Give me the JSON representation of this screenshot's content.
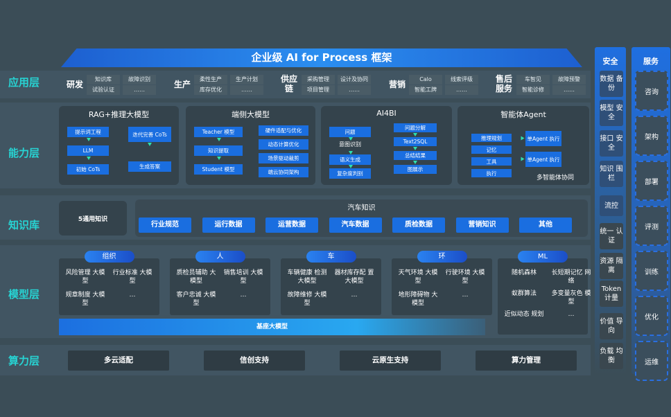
{
  "title": "企业级 AI for Process 框架",
  "layers": {
    "app": "应用层",
    "capability": "能力层",
    "knowledge": "知识库",
    "model": "模型层",
    "compute": "算力层"
  },
  "app_groups": [
    {
      "label": "研发",
      "items": [
        "知识库",
        "故障识别",
        "试验认证",
        "……"
      ]
    },
    {
      "label": "生产",
      "items": [
        "柔性生产",
        "生产计划",
        "库存优化",
        "……"
      ]
    },
    {
      "label": "供应链",
      "items": [
        "采购管理",
        "设计及协同",
        "项目管理",
        "……"
      ]
    },
    {
      "label": "营销",
      "items": [
        "Calo",
        "线索评级",
        "智能工牌",
        "……"
      ]
    },
    {
      "label": "售后服务",
      "items": [
        "车智见",
        "故障预警",
        "智能诊修",
        "……"
      ]
    }
  ],
  "capability": {
    "rag": {
      "title": "RAG+推理大模型",
      "left": [
        "提示词工程",
        "LLM",
        "初始 CoTs"
      ],
      "right": [
        "迭代完善 CoTs",
        "生成答案"
      ]
    },
    "edge": {
      "title": "端侧大模型",
      "left": [
        "Teacher 模型",
        "知识提取",
        "Student 模型"
      ],
      "right": [
        "硬件适配与优化",
        "动态计算优化",
        "场景驱动裁剪",
        "端云协同架构"
      ]
    },
    "ai4bi": {
      "title": "AI4BI",
      "left": [
        "问题",
        "意图识别",
        "语义生成",
        "复杂度判别"
      ],
      "right": [
        "问题分解",
        "Text2SQL",
        "总结结果",
        "图展示"
      ]
    },
    "agent": {
      "title": "智能体Agent",
      "left": [
        "推理规划",
        "记忆",
        "工具",
        "执行"
      ],
      "right": [
        "单Agent 执行",
        "单Agent 执行"
      ],
      "footer": "多智能体协同"
    }
  },
  "knowledge": {
    "general": "5通用知识",
    "auto_title": "汽车知识",
    "items": [
      "行业规范",
      "运行数据",
      "运营数据",
      "汽车数据",
      "质检数据",
      "营销知识",
      "其他"
    ]
  },
  "models": [
    {
      "pill": "组织",
      "items": [
        "风险管理 大模型",
        "行业标准 大模型",
        "规章制度 大模型",
        "…"
      ]
    },
    {
      "pill": "人",
      "items": [
        "质检员辅助 大模型",
        "销售培训 大模型",
        "客户忠诚 大模型",
        "…"
      ]
    },
    {
      "pill": "车",
      "items": [
        "车辆健康 检测大模型",
        "器材库存配 置大模型",
        "故障维修 大模型",
        "…"
      ]
    },
    {
      "pill": "环",
      "items": [
        "天气环境 大模型",
        "行驶环境 大模型",
        "地形障碍物 大模型",
        "…"
      ]
    },
    {
      "pill": "ML",
      "items": [
        "随机森林",
        "长短期记忆 网络",
        "蚁群算法",
        "多变量灰色 模型",
        "近似动态 规划",
        "…"
      ]
    }
  ],
  "base_model": "基座大模型",
  "compute": [
    "多云适配",
    "信创支持",
    "云原生支持",
    "算力管理"
  ],
  "security": {
    "title": "安全",
    "items": [
      "数据 备份",
      "模型 安全",
      "接口 安全",
      "知识 围栏",
      "流控",
      "统一 认证",
      "资源 隔离",
      "Token 计量",
      "价值 导向",
      "负载 均衡"
    ]
  },
  "service": {
    "title": "服务",
    "items": [
      "咨询",
      "架构",
      "部署",
      "评测",
      "训练",
      "优化",
      "运维"
    ]
  },
  "colors": {
    "background": "#3b4d57",
    "accent": "#1a6ee0",
    "layer_label": "#27d3d3"
  }
}
